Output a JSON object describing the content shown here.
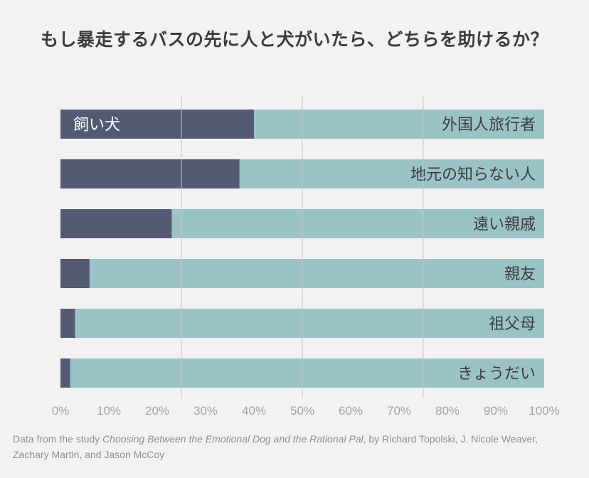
{
  "title": "もし暴走するバスの先に人と犬がいたら、どちらを助けるか？",
  "colors": {
    "background": "#f1f2f1",
    "dog_bar": "#545a74",
    "human_bar": "#9bc3c7",
    "grid": "#c4c6c6",
    "tick_text": "#a2a5a8",
    "label_text": "#3b3c3e",
    "dog_label_text": "#ffffff"
  },
  "chart_data": {
    "type": "bar",
    "orientation": "horizontal",
    "stacked": true,
    "percent_stacked": true,
    "categories": [
      "外国人旅行者",
      "地元の知らない人",
      "遠い親戚",
      "親友",
      "祖父母",
      "きょうだい"
    ],
    "series": [
      {
        "name": "飼い犬",
        "values": [
          40,
          37,
          23,
          6,
          3,
          2
        ]
      }
    ],
    "xlim": [
      0,
      100
    ],
    "x_ticks": [
      "0%",
      "10%",
      "20%",
      "30%",
      "40%",
      "50%",
      "60%",
      "70%",
      "80%",
      "90%",
      "100%"
    ],
    "gridlines_at": [
      25,
      50,
      75
    ],
    "grid": true
  },
  "source": {
    "prefix": "Data from the study ",
    "study_title": "Choosing Between the Emotional Dog and the Rational Pal",
    "suffix": ", by Richard Topolski, J. Nicole Weaver, Zachary Martin, and Jason McCoy"
  }
}
